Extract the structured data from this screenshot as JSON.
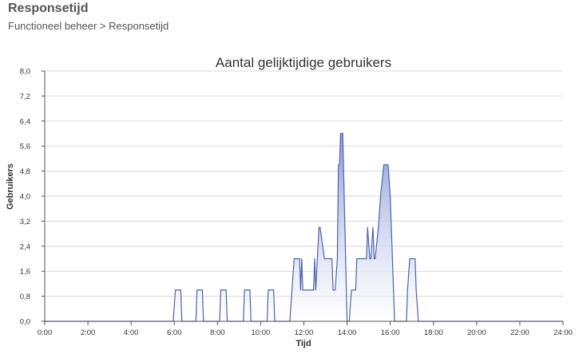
{
  "page": {
    "title": "Responsetijd",
    "breadcrumb": "Functioneel beheer > Responsetijd"
  },
  "chart_data": {
    "type": "area",
    "title": "Aantal gelijktijdige gebruikers",
    "xlabel": "Tijd",
    "ylabel": "Gebruikers",
    "xlim": [
      0,
      24
    ],
    "ylim": [
      0,
      8
    ],
    "x_tick_labels": [
      "0:00",
      "2:00",
      "4:00",
      "6:00",
      "8:00",
      "10:00",
      "12:00",
      "14:00",
      "16:00",
      "18:00",
      "20:00",
      "22:00",
      "24:00"
    ],
    "y_tick_labels": [
      "0,0",
      "0,8",
      "1,6",
      "2,4",
      "3,2",
      "4,0",
      "4,8",
      "5,6",
      "6,4",
      "7,2",
      "8,0"
    ],
    "grid": true,
    "legend": "none",
    "colors": {
      "line": "#4a62b0",
      "fill_top": "#8e9cd9",
      "fill_bottom": "#ffffff",
      "grid": "#d8d8d8",
      "axis": "#555555"
    },
    "series": [
      {
        "x": [
          0,
          5.95,
          6.05,
          6.3,
          6.35,
          7,
          7.05,
          7.3,
          7.35,
          8.1,
          8.15,
          8.4,
          8.45,
          9.2,
          9.25,
          9.5,
          9.55,
          10.3,
          10.35,
          10.6,
          10.65,
          11.35,
          11.45,
          11.55,
          11.8,
          11.85,
          11.9,
          11.95,
          12.05,
          12.1,
          12.45,
          12.5,
          12.55,
          12.7,
          12.75,
          12.95,
          13,
          13.3,
          13.35,
          13.45,
          13.55,
          13.6,
          13.65,
          13.7,
          13.8,
          13.9,
          14.0,
          14.1,
          14.2,
          14.4,
          14.45,
          14.9,
          14.95,
          15.05,
          15.1,
          15.2,
          15.25,
          15.3,
          15.45,
          15.55,
          15.7,
          15.9,
          16.0,
          16.05,
          16.1,
          16.2,
          16.35,
          16.75,
          16.8,
          16.9,
          17.15,
          17.2,
          17.3,
          24
        ],
        "y": [
          0,
          0,
          1,
          1,
          0,
          0,
          1,
          1,
          0,
          0,
          1,
          1,
          0,
          0,
          1,
          1,
          0,
          0,
          1,
          1,
          0,
          0,
          1,
          2,
          2,
          1,
          2,
          1,
          1,
          1,
          1,
          2,
          1,
          3,
          3,
          2,
          2,
          2,
          1,
          1,
          2,
          5,
          5,
          6,
          6,
          3,
          0,
          0,
          1,
          1,
          2,
          2,
          3,
          2,
          2,
          3,
          2,
          2,
          3,
          4,
          5,
          5,
          4,
          3,
          2,
          0,
          0,
          0,
          1,
          2,
          2,
          1,
          0,
          0
        ]
      }
    ]
  }
}
